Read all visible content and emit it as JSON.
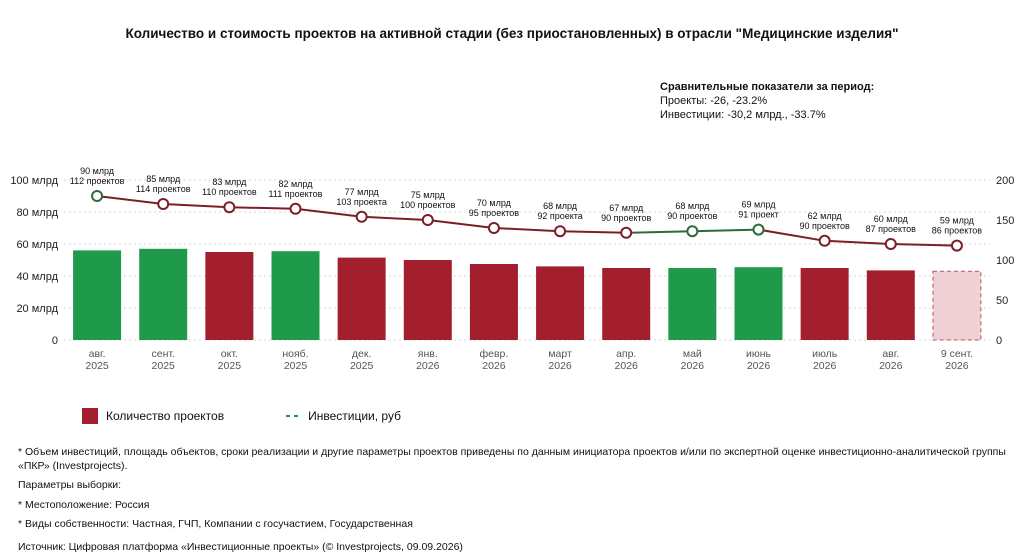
{
  "title": "Количество и стоимость проектов на активной стадии (без приостановленных) в отрасли \"Медицинские изделия\"",
  "summary": {
    "heading": "Сравнительные показатели за период:",
    "projects": "Проекты: -26, -23.2%",
    "investments": "Инвестиции: -30,2 млрд., -33.7%"
  },
  "legend": {
    "bars": "Количество проектов",
    "line": "Инвестиции, руб"
  },
  "notes": [
    "* Объем инвестиций, площадь объектов, сроки реализации и другие параметры проектов приведены по данным инициатора проектов и/или по экспертной оценке инвестиционно-аналитической группы «ПКР» (Investprojects).",
    "Параметры выборки:",
    "* Местоположение: Россия",
    "* Виды собственности: Частная, ГЧП, Компании с госучастием, Государственная"
  ],
  "source": "Источник: Цифровая платформа «Инвестиционные проекты» (© Investprojects, 09.09.2026)",
  "colors": {
    "up": "#1e9a4a",
    "down": "#a31f2e",
    "current_fill": "#f0d0d5",
    "current_stroke": "#c0505f",
    "line": "#7a1f28"
  },
  "chart_data": {
    "type": "bar",
    "categories": [
      [
        "авг.",
        "2025"
      ],
      [
        "сент.",
        "2025"
      ],
      [
        "окт.",
        "2025"
      ],
      [
        "нояб.",
        "2025"
      ],
      [
        "дек.",
        "2025"
      ],
      [
        "янв.",
        "2026"
      ],
      [
        "февр.",
        "2026"
      ],
      [
        "март",
        "2026"
      ],
      [
        "апр.",
        "2026"
      ],
      [
        "май",
        "2026"
      ],
      [
        "июнь",
        "2026"
      ],
      [
        "июль",
        "2026"
      ],
      [
        "авг.",
        "2026"
      ],
      [
        "9 сент.",
        "2026"
      ]
    ],
    "series": [
      {
        "name": "Количество проектов",
        "axis": "right",
        "values": [
          112,
          114,
          110,
          111,
          103,
          100,
          95,
          92,
          90,
          90,
          91,
          90,
          87,
          86
        ],
        "status": [
          "up",
          "up",
          "down",
          "up",
          "down",
          "down",
          "down",
          "down",
          "down",
          "up",
          "up",
          "down",
          "down",
          "current"
        ]
      },
      {
        "name": "Инвестиции, руб",
        "axis": "left",
        "values": [
          90,
          85,
          83,
          82,
          77,
          75,
          70,
          68,
          67,
          68,
          69,
          62,
          60,
          59
        ],
        "status": [
          "up",
          "down",
          "down",
          "down",
          "down",
          "down",
          "down",
          "down",
          "down",
          "up",
          "up",
          "down",
          "down",
          "down"
        ]
      }
    ],
    "annotations": [
      [
        "90 млрд",
        "112 проектов"
      ],
      [
        "85 млрд",
        "114 проектов"
      ],
      [
        "83 млрд",
        "110 проектов"
      ],
      [
        "82 млрд",
        "111 проектов"
      ],
      [
        "77 млрд",
        "103 проекта"
      ],
      [
        "75 млрд",
        "100 проектов"
      ],
      [
        "70 млрд",
        "95 проектов"
      ],
      [
        "68 млрд",
        "92 проекта"
      ],
      [
        "67 млрд",
        "90 проектов"
      ],
      [
        "68 млрд",
        "90 проектов"
      ],
      [
        "69 млрд",
        "91 проект"
      ],
      [
        "62 млрд",
        "90 проектов"
      ],
      [
        "60 млрд",
        "87 проектов"
      ],
      [
        "59 млрд",
        "86 проектов"
      ]
    ],
    "y_left": {
      "ticks": [
        "0",
        "20 млрд",
        "40 млрд",
        "60 млрд",
        "80 млрд",
        "100 млрд"
      ],
      "ylim": [
        0,
        100
      ]
    },
    "y_right": {
      "ticks": [
        "0",
        "50",
        "100",
        "150",
        "200"
      ],
      "ylim": [
        0,
        200
      ]
    },
    "grid": true
  }
}
